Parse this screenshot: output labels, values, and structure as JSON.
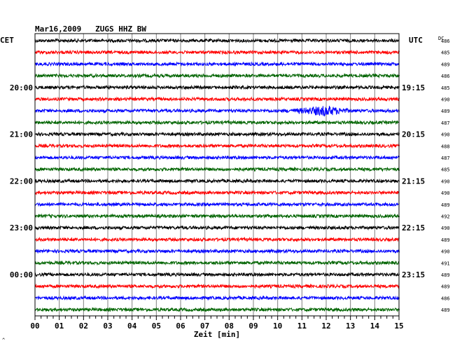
{
  "header": {
    "title": "Mar16,2009   ZUGS HHZ BW",
    "left_tz": "CET",
    "right_tz": "UTC",
    "dc_label": "DC",
    "corner_mark": "^"
  },
  "colors": {
    "cycle": [
      "#000000",
      "#ff0000",
      "#0000ff",
      "#006400"
    ],
    "frame": "#000000",
    "grid": "#808080"
  },
  "chart_data": {
    "type": "line",
    "title": "Mar16,2009   ZUGS HHZ BW",
    "xlabel": "Zeit [min]",
    "xlim": [
      0,
      15
    ],
    "x_ticks": [
      "00",
      "01",
      "02",
      "03",
      "04",
      "05",
      "06",
      "07",
      "08",
      "09",
      "10",
      "11",
      "12",
      "13",
      "14",
      "15"
    ],
    "minor_ticks_per_minute": 4,
    "traces_per_hour": 4,
    "minutes_per_trace": 15,
    "left_hour_labels": [
      {
        "trace": 4,
        "label": "20:00"
      },
      {
        "trace": 8,
        "label": "21:00"
      },
      {
        "trace": 12,
        "label": "22:00"
      },
      {
        "trace": 16,
        "label": "23:00"
      },
      {
        "trace": 20,
        "label": "00:00"
      }
    ],
    "right_hour_labels": [
      {
        "trace": 4,
        "label": "19:15"
      },
      {
        "trace": 8,
        "label": "20:15"
      },
      {
        "trace": 12,
        "label": "21:15"
      },
      {
        "trace": 16,
        "label": "22:15"
      },
      {
        "trace": 20,
        "label": "23:15"
      }
    ],
    "dc_values": [
      486,
      485,
      489,
      486,
      485,
      490,
      489,
      487,
      490,
      488,
      487,
      485,
      490,
      490,
      489,
      492,
      490,
      489,
      490,
      491,
      489,
      489,
      486,
      489
    ],
    "event": {
      "trace": 6,
      "start_min": 10.0,
      "peak_min": 12.0,
      "end_min": 13.2
    }
  }
}
